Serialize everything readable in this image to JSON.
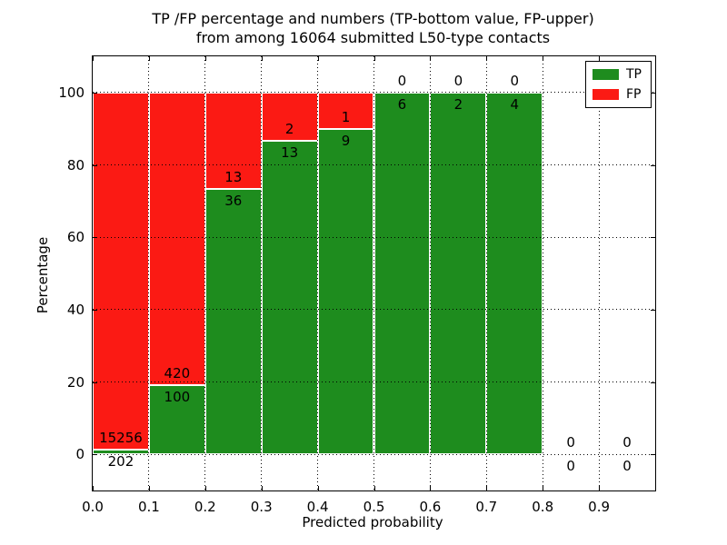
{
  "figure": {
    "title_line1": "TP /FP percentage and numbers (TP-bottom value, FP-upper)",
    "title_line2": "from among 16064 submitted L50-type contacts",
    "xlabel": "Predicted probability",
    "ylabel": "Percentage"
  },
  "chart_data": {
    "type": "bar",
    "stacked": true,
    "title": "TP /FP percentage and numbers (TP-bottom value, FP-upper) from among 16064 submitted L50-type contacts",
    "xlabel": "Predicted probability",
    "ylabel": "Percentage",
    "total_contacts": 16064,
    "bin_width": 0.1,
    "bin_starts": [
      0.0,
      0.1,
      0.2,
      0.3,
      0.4,
      0.5,
      0.6,
      0.7,
      0.8,
      0.9
    ],
    "series": [
      {
        "name": "TP",
        "color": "#1e8c1e",
        "counts": [
          202,
          100,
          36,
          13,
          9,
          6,
          2,
          4,
          0,
          0
        ]
      },
      {
        "name": "FP",
        "color": "#fb1a14",
        "counts": [
          15256,
          420,
          13,
          2,
          1,
          0,
          0,
          0,
          0,
          0
        ]
      }
    ],
    "values_are": "counts; bar segment heights are count/(TP+FP) as percentage of each bin",
    "tp_percentages": [
      1.31,
      19.23,
      73.47,
      86.67,
      90.0,
      100.0,
      100.0,
      100.0,
      0.0,
      0.0
    ],
    "xlim": [
      0.0,
      1.0
    ],
    "ylim": [
      -10,
      110
    ],
    "x_tick_labels": [
      "0.0",
      "0.1",
      "0.2",
      "0.3",
      "0.4",
      "0.5",
      "0.6",
      "0.7",
      "0.8",
      "0.9"
    ],
    "y_ticks": [
      0,
      20,
      40,
      60,
      80,
      100
    ],
    "y_tick_labels": [
      "0",
      "20",
      "40",
      "60",
      "80",
      "100"
    ],
    "grid": "dotted",
    "legend_position": "upper right"
  }
}
